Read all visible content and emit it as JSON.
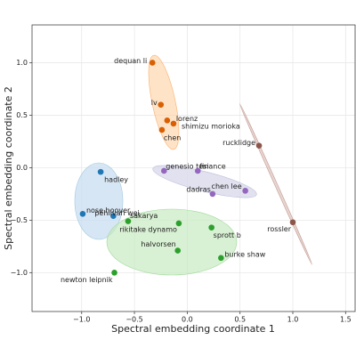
{
  "chart_data": {
    "type": "scatter",
    "x_label": "Spectral embedding coordinate 1",
    "y_label": "Spectral embedding coordinate 2",
    "xlim": [
      -1.47,
      1.59
    ],
    "ylim": [
      -1.37,
      1.36
    ],
    "xticks": [
      {
        "value": -1,
        "label": "−1.0"
      },
      {
        "value": -0.5,
        "label": "−0.5"
      },
      {
        "value": 0,
        "label": "0.0"
      },
      {
        "value": 0.5,
        "label": "0.5"
      },
      {
        "value": 1,
        "label": "1.0"
      },
      {
        "value": 1.5,
        "label": "1.5"
      }
    ],
    "yticks": [
      {
        "value": -1,
        "label": "−1.0"
      },
      {
        "value": -0.5,
        "label": "−0.5"
      },
      {
        "value": 0,
        "label": "0.0"
      },
      {
        "value": 0.5,
        "label": "0.5"
      },
      {
        "value": 1,
        "label": "1.0"
      }
    ],
    "grid": true,
    "series": [
      {
        "color": "#d95f02",
        "x": [
          -0.33,
          -0.25,
          -0.19,
          -0.13,
          -0.24
        ],
        "values": [
          1.0,
          0.6,
          0.45,
          0.42,
          0.36
        ],
        "labels": [
          "dequan li",
          "lv",
          "lorenz",
          "shimizu morioka",
          "chen"
        ]
      },
      {
        "color": "#8c564b",
        "x": [
          0.68,
          1.0
        ],
        "values": [
          0.21,
          -0.52
        ],
        "labels": [
          "rucklidge",
          "rossler"
        ]
      },
      {
        "color": "#9467bd",
        "x": [
          -0.22,
          0.1,
          0.24,
          0.55
        ],
        "values": [
          -0.03,
          -0.03,
          -0.25,
          -0.22
        ],
        "labels": [
          "genesio tesi",
          "finance",
          "dadras",
          "chen lee"
        ]
      },
      {
        "color": "#1f77b4",
        "x": [
          -0.82,
          -0.99,
          -0.7
        ],
        "values": [
          -0.04,
          -0.44,
          -0.46
        ],
        "labels": [
          "hadley",
          "nose hoover",
          "pehlivan wei"
        ]
      },
      {
        "color": "#2ca02c",
        "x": [
          -0.56,
          -0.08,
          0.23,
          -0.09,
          0.32,
          -0.69
        ],
        "values": [
          -0.51,
          -0.53,
          -0.57,
          -0.79,
          -0.86,
          -1.0
        ],
        "labels": [
          "sakarya",
          "rikitake dynamo",
          "sprott b",
          "halvorsen",
          "burke shaw",
          "newton leipnik"
        ]
      }
    ]
  }
}
